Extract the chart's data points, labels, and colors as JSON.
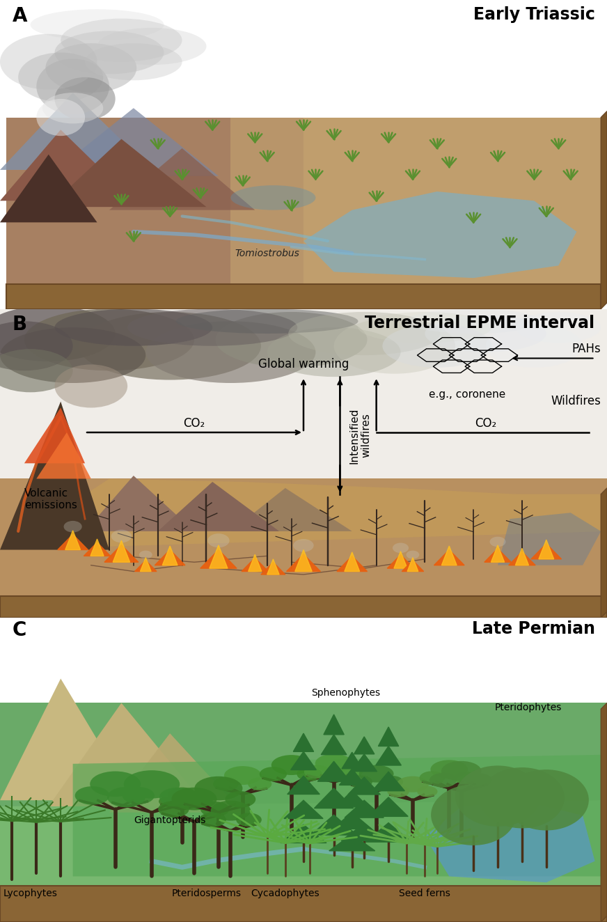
{
  "panel_A_label": "A",
  "panel_B_label": "B",
  "panel_C_label": "C",
  "panel_A_title": "Early Triassic",
  "panel_B_title": "Terrestrial EPME interval",
  "panel_C_title": "Late Permian",
  "panel_A_subtitle": "Tomiostrobus",
  "panel_B_annotations": {
    "volcanic_emissions": "Volcanic\nemissions",
    "co2_left": "CO₂",
    "global_warming": "Global warming",
    "intensified_wildfires": "Intensified\nwildfires",
    "co2_right": "CO₂",
    "pahs": "PAHs",
    "eg_coronene": "e.g., coronene",
    "wildfires": "Wildfires"
  },
  "panel_C_labels": {
    "lycophytes": "Lycophytes",
    "gigantopterids": "Gigantopterids",
    "pteridosperms": "Pteridosperms",
    "cycadophytes": "Cycadophytes",
    "seed_ferns": "Seed ferns",
    "sphenophytes": "Sphenophytes",
    "pteridophytes": "Pteridophytes"
  },
  "bg_color": "#ffffff",
  "label_fontsize": 20,
  "title_fontsize": 17,
  "annotation_fontsize": 12,
  "small_fontsize": 10
}
